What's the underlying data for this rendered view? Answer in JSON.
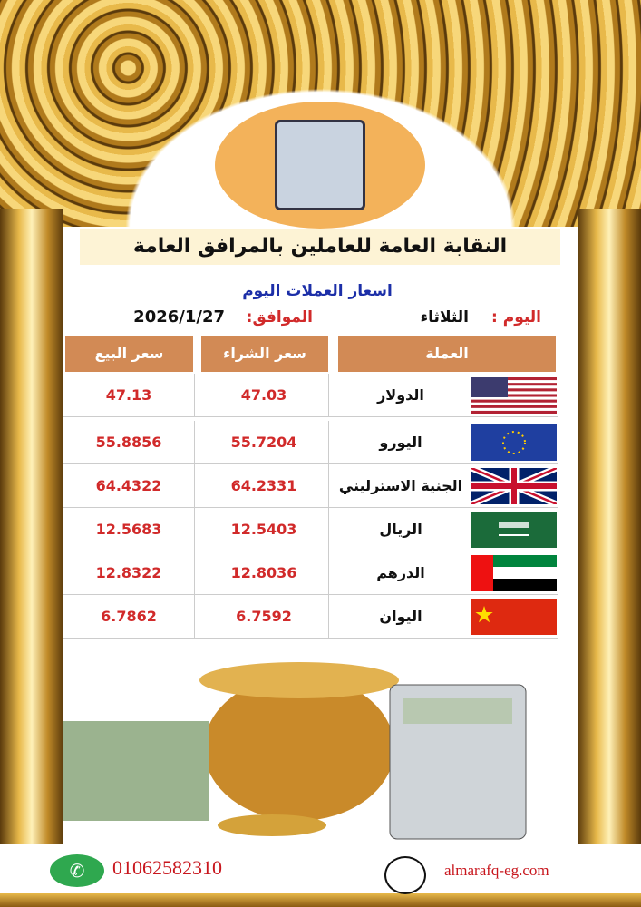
{
  "header": {
    "title": "النقابة العامة للعاملين بالمرافق العامة",
    "subtitle": "اسعار العملات اليوم",
    "day_label": "اليوم :",
    "day": "الثلاثاء",
    "date_label": "الموافق:",
    "date": "2026/1/27"
  },
  "table": {
    "columns": [
      "العملة",
      "سعر الشراء",
      "سعر البيع"
    ],
    "rows": [
      {
        "currency": "الدولار",
        "flag": "us-flag",
        "buy": "47.03",
        "sell": "47.13"
      },
      {
        "currency": "اليورو",
        "flag": "eu-flag",
        "buy": "55.7204",
        "sell": "55.8856"
      },
      {
        "currency": "الجنية الاسترليني",
        "flag": "uk-flag",
        "buy": "64.2331",
        "sell": "64.4322"
      },
      {
        "currency": "الريال",
        "flag": "saudi-flag",
        "buy": "12.5403",
        "sell": "12.5683"
      },
      {
        "currency": "الدرهم",
        "flag": "uae-flag",
        "buy": "12.8036",
        "sell": "12.8322"
      },
      {
        "currency": "اليوان",
        "flag": "china-flag",
        "buy": "6.7592",
        "sell": "6.7862"
      }
    ]
  },
  "footer": {
    "phone": "01062582310",
    "website": "almarafq-eg.com"
  }
}
